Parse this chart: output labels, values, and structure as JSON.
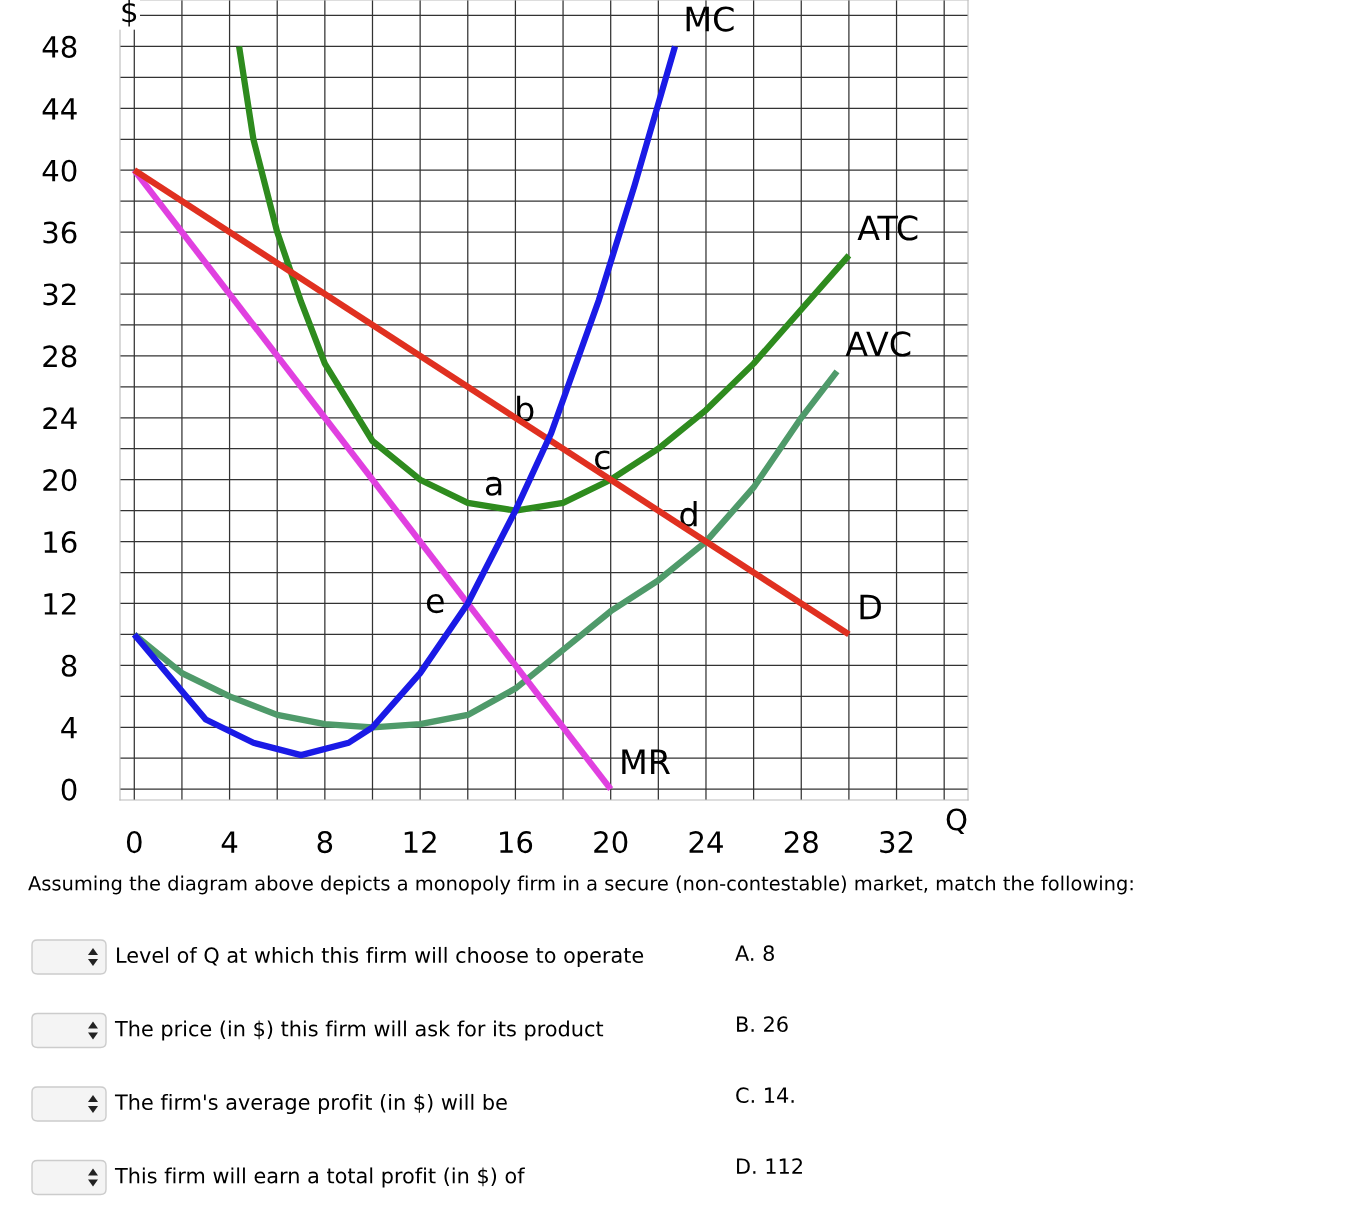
{
  "chart_data": {
    "type": "line",
    "xlabel": "Q",
    "ylabel": "$",
    "xlim": [
      -0.6,
      35
    ],
    "ylim": [
      -0.7,
      51
    ],
    "xticks": [
      0,
      {
        "value": 2,
        "label": null
      },
      4,
      {
        "value": 6,
        "label": null
      },
      8,
      {
        "value": 10,
        "label": null
      },
      12,
      {
        "value": 14,
        "label": null
      },
      16,
      {
        "value": 18,
        "label": null
      },
      20,
      {
        "value": 22,
        "label": null
      },
      24,
      {
        "value": 26,
        "label": null
      },
      28,
      {
        "value": 30,
        "label": null
      },
      32,
      {
        "value": 34,
        "label": null
      }
    ],
    "yticks": [
      0,
      {
        "value": 2,
        "label": null
      },
      4,
      {
        "value": 6,
        "label": null
      },
      8,
      {
        "value": 10,
        "label": null
      },
      12,
      {
        "value": 14,
        "label": null
      },
      16,
      {
        "value": 18,
        "label": null
      },
      20,
      {
        "value": 22,
        "label": null
      },
      24,
      {
        "value": 26,
        "label": null
      },
      28,
      {
        "value": 30,
        "label": null
      },
      32,
      {
        "value": 34,
        "label": null
      },
      36,
      {
        "value": 38,
        "label": null
      },
      40,
      {
        "value": 42,
        "label": null
      },
      44,
      {
        "value": 46,
        "label": null
      },
      48,
      {
        "value": 50,
        "label": null
      }
    ],
    "grid": true,
    "legend": false,
    "marker": "none",
    "line_style": "solid",
    "series": [
      {
        "name": "ATC",
        "color": "#2e8b1e",
        "x": [
          4.4,
          5,
          6,
          7,
          8,
          10,
          12,
          14,
          16,
          18,
          20,
          22,
          24,
          26,
          28,
          30
        ],
        "values": [
          48,
          42,
          36,
          31.5,
          27.5,
          22.5,
          20,
          18.5,
          18,
          18.5,
          20,
          22,
          24.5,
          27.5,
          31,
          34.5
        ]
      },
      {
        "name": "AVC",
        "color": "#4f9a6a",
        "x": [
          0,
          2,
          4,
          6,
          8,
          10,
          12,
          14,
          16,
          18,
          20,
          22,
          24,
          26,
          28,
          29.5
        ],
        "values": [
          10,
          7.5,
          6,
          4.8,
          4.2,
          4,
          4.2,
          4.8,
          6.5,
          9,
          11.5,
          13.5,
          16,
          19.5,
          24,
          27
        ]
      },
      {
        "name": "MR",
        "color": "#e040e0",
        "x": [
          0,
          20
        ],
        "values": [
          40,
          0
        ]
      },
      {
        "name": "D",
        "color": "#e03020",
        "x": [
          0,
          30
        ],
        "values": [
          40,
          10
        ]
      },
      {
        "name": "MC",
        "color": "#1a1ae6",
        "x": [
          0,
          3,
          5,
          7,
          9,
          10,
          12,
          14,
          16,
          17.5,
          19.5,
          21,
          22.7
        ],
        "values": [
          10,
          4.5,
          3,
          2.2,
          3,
          4,
          7.5,
          12,
          18,
          23,
          31.6,
          39,
          48
        ]
      }
    ],
    "annotations": [
      {
        "text": "a",
        "x": 16,
        "y": 18
      },
      {
        "text": "b",
        "x": 17.3,
        "y": 22.8
      },
      {
        "text": "c",
        "x": 20.5,
        "y": 19.7
      },
      {
        "text": "d",
        "x": 24.2,
        "y": 16
      },
      {
        "text": "e",
        "x": 14,
        "y": 12
      },
      "Assuming the diagram above depicts a monopoly firm in a secure (non-contestable) market, match the following:",
      "Level of Q at which this firm will choose to operate",
      "The price (in $) this firm will ask for its product",
      "The firm's average profit (in $) will be",
      "This firm will earn a total profit (in $) of",
      "A. 8",
      "B. 26",
      "C. 14.",
      "D. 112"
    ]
  }
}
